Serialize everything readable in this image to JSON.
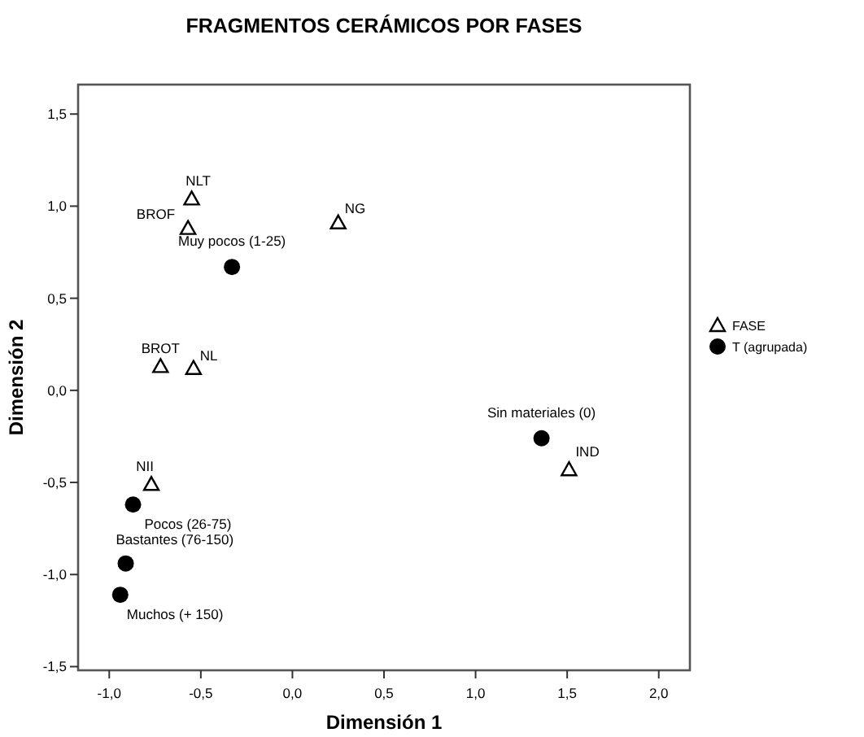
{
  "chart_data": {
    "type": "scatter",
    "title": "FRAGMENTOS CERÁMICOS POR FASES",
    "xlabel": "Dimensión 1",
    "ylabel": "Dimensión 2",
    "xlim": [
      -1.17,
      2.17
    ],
    "ylim": [
      -1.52,
      1.66
    ],
    "xticks": [
      {
        "value": -1,
        "label": "-1,0"
      },
      {
        "value": -0.5,
        "label": "-0,5"
      },
      {
        "value": 0,
        "label": "0,0"
      },
      {
        "value": 0.5,
        "label": "0,5"
      },
      {
        "value": 1,
        "label": "1,0"
      },
      {
        "value": 1.5,
        "label": "1,5"
      },
      {
        "value": 2,
        "label": "2,0"
      }
    ],
    "yticks": [
      {
        "value": -1.5,
        "label": "-1,5"
      },
      {
        "value": -1,
        "label": "-1,0"
      },
      {
        "value": -0.5,
        "label": "-0,5"
      },
      {
        "value": 0,
        "label": "0,0"
      },
      {
        "value": 0.5,
        "label": "0,5"
      },
      {
        "value": 1,
        "label": "1,0"
      },
      {
        "value": 1.5,
        "label": "1,5"
      }
    ],
    "grid": false,
    "legend": "right",
    "series": [
      {
        "name": "FASE",
        "color": "#000000",
        "marker": "triangle",
        "x": [
          -0.55,
          -0.57,
          0.25,
          -0.72,
          -0.54,
          -0.77,
          1.51
        ],
        "values": [
          1.04,
          0.88,
          0.91,
          0.13,
          0.12,
          -0.51,
          -0.43
        ]
      },
      {
        "name": "T (agrupada)",
        "color": "#000000",
        "marker": "circle",
        "x": [
          -0.33,
          -0.87,
          -0.91,
          -0.94,
          1.36
        ],
        "values": [
          0.67,
          -0.62,
          -0.94,
          -1.11,
          -0.26
        ]
      }
    ],
    "annotations": [
      {
        "text": "NLT",
        "x": -0.55,
        "y": 1.04
      },
      {
        "text": "BROF",
        "x": -0.57,
        "y": 0.88
      },
      {
        "text": "NG",
        "x": 0.25,
        "y": 0.91
      },
      {
        "text": "BROT",
        "x": -0.72,
        "y": 0.13
      },
      {
        "text": "NL",
        "x": -0.54,
        "y": 0.12
      },
      {
        "text": "NII",
        "x": -0.77,
        "y": -0.51
      },
      {
        "text": "IND",
        "x": 1.51,
        "y": -0.43
      },
      {
        "text": "Muy pocos (1-25)",
        "x": -0.33,
        "y": 0.67
      },
      {
        "text": "Pocos (26-75)",
        "x": -0.87,
        "y": -0.62
      },
      {
        "text": "Bastantes (76-150)",
        "x": -0.91,
        "y": -0.94
      },
      {
        "text": "Muchos (+ 150)",
        "x": -0.94,
        "y": -1.11
      },
      {
        "text": "Sin materiales (0)",
        "x": 1.36,
        "y": -0.26
      }
    ]
  }
}
